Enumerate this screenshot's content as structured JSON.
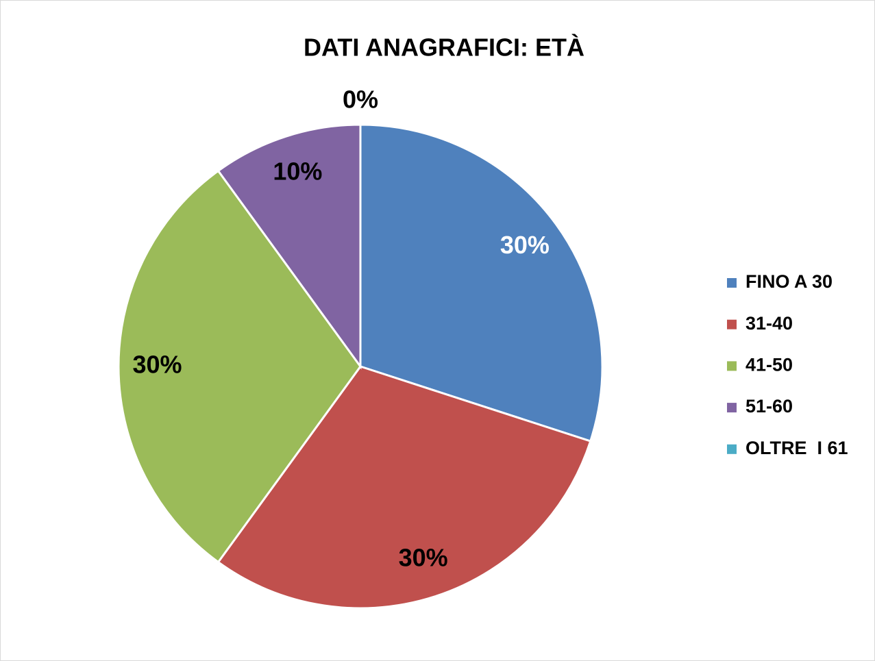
{
  "chart_data": {
    "type": "pie",
    "title": "DATI ANAGRAFICI: ETÀ",
    "categories": [
      "FINO A 30",
      "31-40",
      "41-50",
      "51-60",
      "OLTRE  I 61"
    ],
    "values": [
      30,
      30,
      30,
      10,
      0
    ],
    "value_labels": [
      "30%",
      "30%",
      "30%",
      "10%",
      "0%"
    ],
    "colors": [
      "#4f81bd",
      "#c0504d",
      "#9bbb59",
      "#8064a2",
      "#4bacc6"
    ],
    "value_label_colors": [
      "#ffffff",
      "#000000",
      "#000000",
      "#000000",
      "#000000"
    ],
    "legend": "right"
  }
}
